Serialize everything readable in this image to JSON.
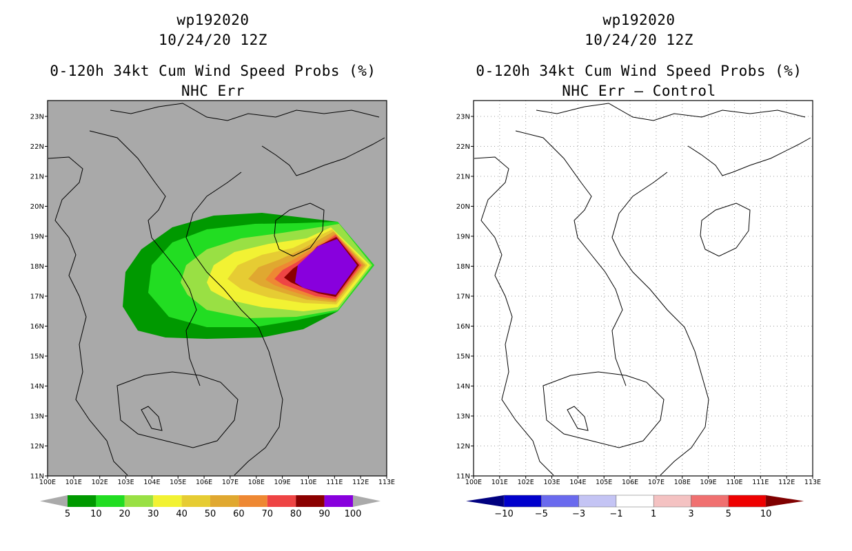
{
  "panels": [
    {
      "storm_id": "wp192020",
      "datetime": "10/24/20 12Z",
      "product": "0-120h 34kt Cum Wind Speed Probs (%)",
      "subtitle": "NHC Err",
      "colorbar": {
        "labels": [
          "5",
          "10",
          "20",
          "30",
          "40",
          "50",
          "60",
          "70",
          "80",
          "90",
          "100"
        ],
        "colors": [
          "#009900",
          "#22dd22",
          "#99e044",
          "#f2f233",
          "#e6cc33",
          "#e0a830",
          "#ee8833",
          "#ee4444",
          "#8b0000",
          "#8800dd"
        ],
        "end_color": "#aaaaaa"
      }
    },
    {
      "storm_id": "wp192020",
      "datetime": "10/24/20 12Z",
      "product": "0-120h 34kt Cum Wind Speed Probs (%)",
      "subtitle": "NHC Err – Control",
      "colorbar": {
        "labels": [
          "−10",
          "−5",
          "−3",
          "−1",
          "1",
          "3",
          "5",
          "10"
        ],
        "colors": [
          "#0000cc",
          "#6a6aee",
          "#c4c4f4",
          "#ffffff",
          "#f4c2c2",
          "#f07070",
          "#ee0000"
        ],
        "left_end_color": "#000080",
        "right_end_color": "#800000"
      }
    }
  ],
  "map": {
    "lat_labels": [
      "23N",
      "22N",
      "21N",
      "20N",
      "19N",
      "18N",
      "17N",
      "16N",
      "15N",
      "14N",
      "13N",
      "12N",
      "11N"
    ],
    "lon_labels": [
      "100E",
      "101E",
      "102E",
      "103E",
      "104E",
      "105E",
      "106E",
      "107E",
      "108E",
      "109E",
      "110E",
      "111E",
      "112E",
      "113E"
    ],
    "left_background": "#a9a9a9",
    "right_background": "#ffffff"
  }
}
